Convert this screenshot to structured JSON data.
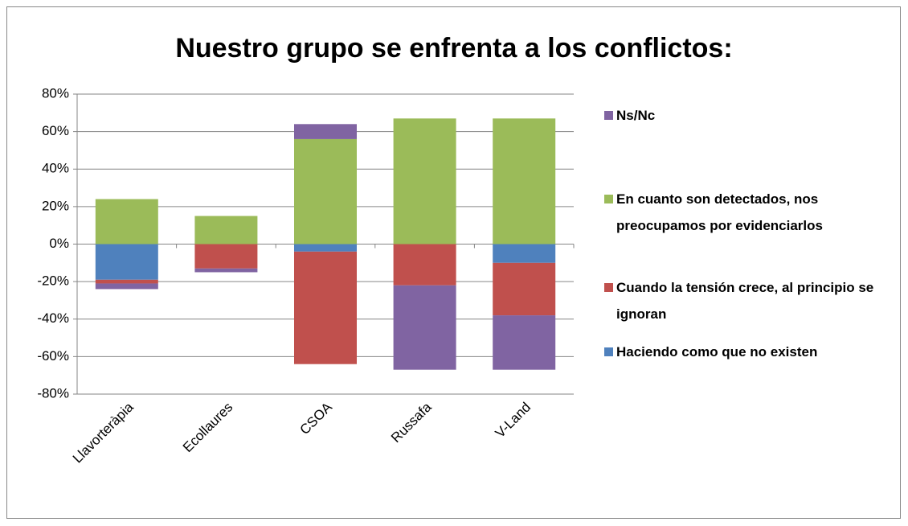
{
  "chart_data": {
    "type": "bar",
    "stacked": true,
    "title": "Nuestro grupo se enfrenta a los conflictos:",
    "categories": [
      "Llavorteràpia",
      "Ecollaures",
      "CSOA",
      "Russafa",
      "V-Land"
    ],
    "series": [
      {
        "name": "Haciendo como que no existen",
        "color": "#4f81bd",
        "values": [
          -19,
          0,
          -4,
          0,
          -10
        ]
      },
      {
        "name": "Cuando la tensión crece, al principio se ignoran",
        "color": "#c0504d",
        "values": [
          -2,
          -13,
          -60,
          -22,
          -28
        ]
      },
      {
        "name": "En cuanto son detectados, nos preocupamos por evidenciarlos",
        "color": "#9bbb59",
        "values": [
          24,
          15,
          56,
          67,
          67
        ]
      },
      {
        "name": "Ns/Nc",
        "color": "#8064a2",
        "values": [
          -3,
          -2,
          8,
          -45,
          -29
        ]
      }
    ],
    "ylim": [
      -80,
      80
    ],
    "yticks": [
      {
        "value": -80,
        "label": "-80%"
      },
      {
        "value": -60,
        "label": "-60%"
      },
      {
        "value": -40,
        "label": "-40%"
      },
      {
        "value": -20,
        "label": "-20%"
      },
      {
        "value": 0,
        "label": "0%"
      },
      {
        "value": 20,
        "label": "20%"
      },
      {
        "value": 40,
        "label": "40%"
      },
      {
        "value": 60,
        "label": "60%"
      },
      {
        "value": 80,
        "label": "80%"
      }
    ],
    "grid": true,
    "legend": "right"
  }
}
